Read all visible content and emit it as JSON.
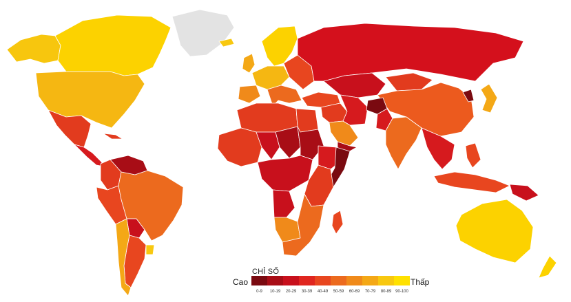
{
  "legend": {
    "title": "CHỈ SỐ",
    "low_label": "Cao",
    "high_label": "Thấp",
    "bins": [
      {
        "range": "0-9",
        "color": "#7a0a10"
      },
      {
        "range": "10-19",
        "color": "#a80d16"
      },
      {
        "range": "20-29",
        "color": "#c8101c"
      },
      {
        "range": "30-39",
        "color": "#e0261f"
      },
      {
        "range": "40-49",
        "color": "#e8461f"
      },
      {
        "range": "50-59",
        "color": "#ec6a1e"
      },
      {
        "range": "60-69",
        "color": "#f08a1a"
      },
      {
        "range": "70-79",
        "color": "#f4a816"
      },
      {
        "range": "80-89",
        "color": "#f8c810"
      },
      {
        "range": "90-100",
        "color": "#ffe100"
      }
    ]
  },
  "no_data_color": "#e3e3e3",
  "regions": [
    {
      "id": "canada",
      "color": "#fcd200"
    },
    {
      "id": "alaska",
      "color": "#f7c60e"
    },
    {
      "id": "greenland",
      "color": "#e3e3e3"
    },
    {
      "id": "usa",
      "color": "#f5b712"
    },
    {
      "id": "mexico",
      "color": "#e23b1e"
    },
    {
      "id": "central-america",
      "color": "#d61a1e"
    },
    {
      "id": "cuba",
      "color": "#e23b1e"
    },
    {
      "id": "venezuela",
      "color": "#a80d16"
    },
    {
      "id": "colombia",
      "color": "#e23b1e"
    },
    {
      "id": "peru",
      "color": "#e8461f"
    },
    {
      "id": "brazil",
      "color": "#ec6a1e"
    },
    {
      "id": "bolivia",
      "color": "#c8101c"
    },
    {
      "id": "argentina",
      "color": "#e8461f"
    },
    {
      "id": "chile",
      "color": "#f4a816"
    },
    {
      "id": "uruguay",
      "color": "#f8c810"
    },
    {
      "id": "scandinavia",
      "color": "#fcd200"
    },
    {
      "id": "iceland",
      "color": "#f8c810"
    },
    {
      "id": "uk",
      "color": "#f4a816"
    },
    {
      "id": "western-europe",
      "color": "#f5b712"
    },
    {
      "id": "iberia",
      "color": "#f08a1a"
    },
    {
      "id": "italy-balkans",
      "color": "#ec6a1e"
    },
    {
      "id": "eastern-europe",
      "color": "#e8461f"
    },
    {
      "id": "russia",
      "color": "#d4101c"
    },
    {
      "id": "turkey",
      "color": "#e8461f"
    },
    {
      "id": "middle-east",
      "color": "#e23b1e"
    },
    {
      "id": "saudi-arabia",
      "color": "#f08a1a"
    },
    {
      "id": "yemen",
      "color": "#a80d16"
    },
    {
      "id": "iran",
      "color": "#d61a1e"
    },
    {
      "id": "central-asia",
      "color": "#c8101c"
    },
    {
      "id": "afghanistan",
      "color": "#7a0a10"
    },
    {
      "id": "pakistan",
      "color": "#d61a1e"
    },
    {
      "id": "india",
      "color": "#ec6a1e"
    },
    {
      "id": "china",
      "color": "#ec5a1e"
    },
    {
      "id": "mongolia",
      "color": "#e23b1e"
    },
    {
      "id": "korea-japan",
      "color": "#f4a816"
    },
    {
      "id": "north-korea",
      "color": "#7a0a10"
    },
    {
      "id": "southeast-asia",
      "color": "#d61a1e"
    },
    {
      "id": "indonesia",
      "color": "#e8461f"
    },
    {
      "id": "philippines",
      "color": "#e8461f"
    },
    {
      "id": "papua",
      "color": "#c8101c"
    },
    {
      "id": "australia",
      "color": "#fcd200"
    },
    {
      "id": "new-zealand",
      "color": "#fcd200"
    },
    {
      "id": "north-africa",
      "color": "#e23b1e"
    },
    {
      "id": "egypt",
      "color": "#e23b1e"
    },
    {
      "id": "west-africa",
      "color": "#e23b1e"
    },
    {
      "id": "sahel",
      "color": "#c8101c"
    },
    {
      "id": "sudan",
      "color": "#a80d16"
    },
    {
      "id": "chad",
      "color": "#a80d16"
    },
    {
      "id": "horn-of-africa",
      "color": "#d61a1e"
    },
    {
      "id": "somalia",
      "color": "#7a0a10"
    },
    {
      "id": "central-africa",
      "color": "#c8101c"
    },
    {
      "id": "east-africa",
      "color": "#e23b1e"
    },
    {
      "id": "angola",
      "color": "#c8101c"
    },
    {
      "id": "southern-africa",
      "color": "#ec6a1e"
    },
    {
      "id": "namibia-botswana",
      "color": "#f08a1a"
    },
    {
      "id": "madagascar",
      "color": "#e8461f"
    }
  ]
}
